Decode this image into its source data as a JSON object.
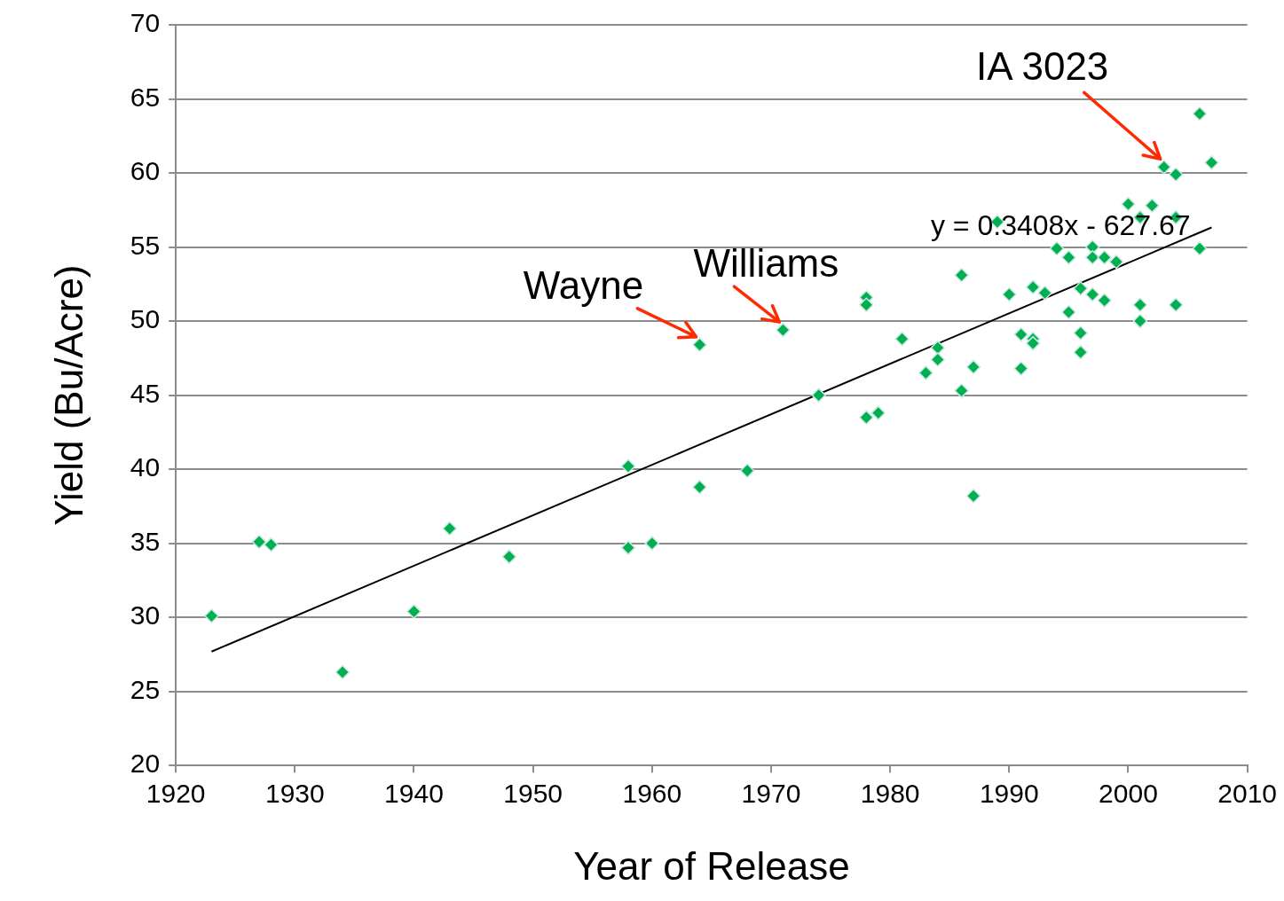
{
  "chart_data": {
    "type": "scatter",
    "xlabel": "Year of Release",
    "ylabel": "Yield (Bu/Acre)",
    "xlim": [
      1920,
      2010
    ],
    "xticks": [
      1920,
      1930,
      1940,
      1950,
      1960,
      1970,
      1980,
      1990,
      2000,
      2010
    ],
    "ylim": [
      20,
      70
    ],
    "yticks": [
      20,
      25,
      30,
      35,
      40,
      45,
      50,
      55,
      60,
      65,
      70
    ],
    "grid": "y",
    "legend": false,
    "marker": "diamond",
    "series": [
      {
        "color": "#00b050",
        "x": [
          1923,
          1927,
          1928,
          1934,
          1940,
          1943,
          1948,
          1958,
          1958,
          1960,
          1964,
          1964,
          1968,
          1971,
          1974,
          1978,
          1978,
          1978,
          1979,
          1981,
          1983,
          1984,
          1984,
          1986,
          1986,
          1987,
          1987,
          1989,
          1990,
          1991,
          1991,
          1992,
          1992,
          1992,
          1993,
          1994,
          1995,
          1995,
          1996,
          1996,
          1996,
          1997,
          1997,
          1997,
          1998,
          1998,
          1999,
          2000,
          2001,
          2001,
          2001,
          2002,
          2003,
          2004,
          2004,
          2004,
          2006,
          2006,
          2007
        ],
        "values": [
          30.1,
          35.1,
          34.9,
          26.3,
          30.4,
          36.0,
          34.1,
          40.2,
          34.7,
          35.0,
          48.4,
          38.8,
          39.9,
          49.4,
          45.0,
          51.6,
          51.1,
          43.5,
          43.8,
          48.8,
          46.5,
          48.2,
          47.4,
          53.1,
          45.3,
          46.9,
          38.2,
          56.7,
          51.8,
          49.1,
          46.8,
          52.3,
          48.8,
          48.5,
          51.9,
          54.9,
          54.3,
          50.6,
          52.2,
          49.2,
          47.9,
          55.0,
          54.3,
          51.8,
          54.3,
          51.4,
          54.0,
          57.9,
          57.0,
          51.1,
          50.0,
          57.8,
          60.4,
          59.9,
          57.0,
          51.1,
          64.0,
          54.9,
          60.7
        ]
      },
      {
        "type": "line",
        "color": "#000000",
        "marker": "none",
        "line_style": "solid",
        "x": [
          1923,
          2007
        ],
        "values": [
          27.69,
          56.32
        ]
      }
    ],
    "annotations": [
      {
        "text": "IA 3023",
        "x": 2003,
        "y": 60.4
      },
      {
        "text": "Wayne",
        "x": 1964,
        "y": 48.4
      },
      {
        "text": "Williams",
        "x": 1971,
        "y": 49.4
      },
      "y = 0.3408x - 627.67"
    ]
  }
}
